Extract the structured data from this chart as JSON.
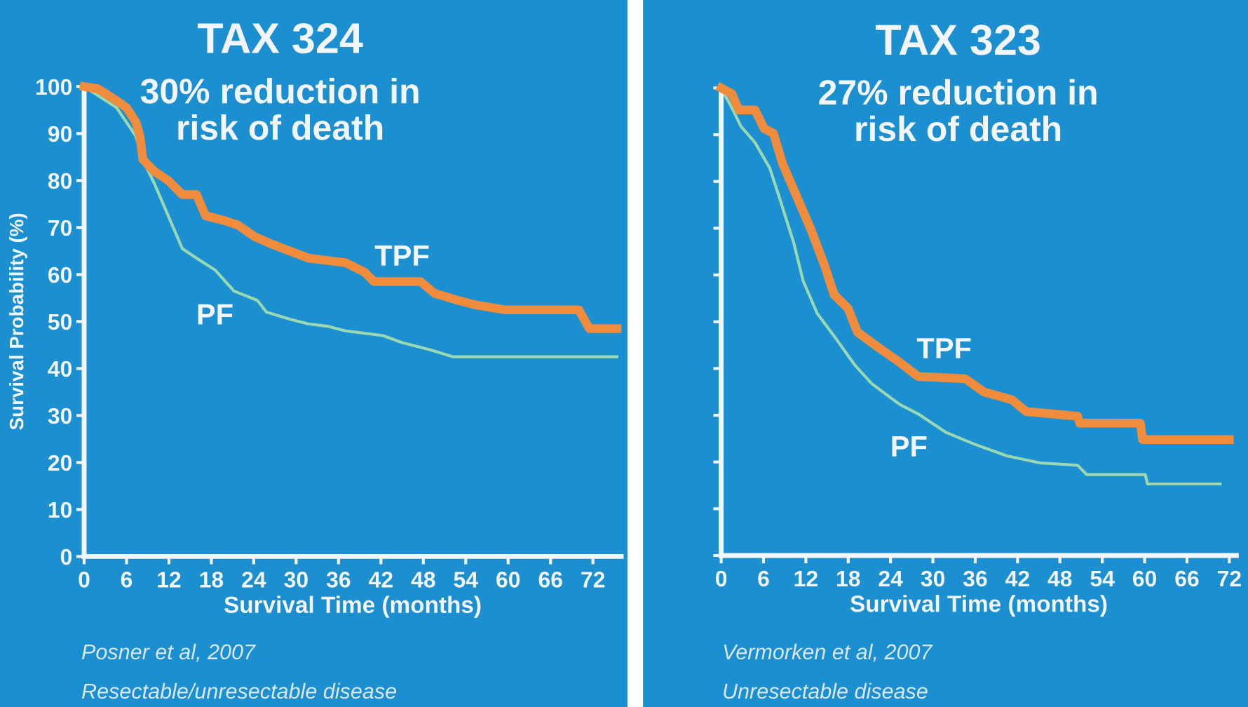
{
  "chart_data": [
    {
      "type": "line",
      "title": "TAX 324",
      "subtitle": "30% reduction in\nrisk of death",
      "xlabel": "Survival Time (months)",
      "ylabel": "Survival Probability (%)",
      "annotations": [
        "Posner et al, 2007",
        "Resectable/unresectable disease"
      ],
      "xlim": [
        0,
        76
      ],
      "ylim": [
        0,
        100
      ],
      "xticks": [
        0,
        6,
        12,
        18,
        24,
        30,
        36,
        42,
        48,
        54,
        60,
        66,
        72
      ],
      "yticks": [
        0,
        10,
        20,
        30,
        40,
        50,
        60,
        70,
        80,
        90,
        100
      ],
      "grid": false,
      "series": [
        {
          "name": "TPF",
          "color": "#f08c3c",
          "x": [
            0,
            2,
            4.6,
            6,
            7.3,
            7.9,
            8.3,
            9.9,
            11.9,
            13.9,
            15.9,
            17.2,
            19.8,
            21.8,
            24.2,
            26.5,
            29.1,
            31.7,
            37,
            39.7,
            41,
            47.6,
            49.6,
            52.9,
            55.5,
            59.5,
            70,
            71.5,
            75.4
          ],
          "values": [
            100,
            99.5,
            97,
            95.5,
            92.5,
            89.5,
            84.5,
            82,
            80,
            77,
            77,
            72.5,
            71.5,
            70.5,
            68,
            66.5,
            65,
            63.5,
            62.5,
            60.5,
            58.5,
            58.5,
            56,
            54.5,
            53.5,
            52.5,
            52.5,
            48.5,
            48.5
          ]
        },
        {
          "name": "PF",
          "color": "#9ad8b4",
          "x": [
            0,
            4.6,
            7.3,
            8.6,
            9.9,
            11.9,
            13.9,
            15.9,
            18.5,
            21.2,
            24.5,
            25.8,
            29.1,
            31.7,
            34.4,
            37,
            42.3,
            45,
            48.9,
            52.2,
            75.4
          ],
          "values": [
            100,
            95.5,
            89.5,
            83.5,
            79.5,
            72.5,
            65.5,
            63.5,
            61,
            56.5,
            54.5,
            52,
            50.5,
            49.5,
            49,
            48,
            47,
            45.5,
            44,
            42.5,
            42.5
          ]
        }
      ]
    },
    {
      "type": "line",
      "title": "TAX 323",
      "subtitle": "27% reduction in\nrisk of death",
      "xlabel": "Survival Time (months)",
      "annotations": [
        "Vermorken et al, 2007",
        "Unresectable disease"
      ],
      "xlim": [
        0,
        73
      ],
      "ylim": [
        0,
        100
      ],
      "xticks": [
        0,
        6,
        12,
        18,
        24,
        30,
        36,
        42,
        48,
        54,
        60,
        66,
        72
      ],
      "yticks": [
        {
          "value": 0,
          "label": null
        },
        {
          "value": 10,
          "label": null
        },
        {
          "value": 20,
          "label": null
        },
        {
          "value": 30,
          "label": null
        },
        {
          "value": 40,
          "label": null
        },
        {
          "value": 50,
          "label": null
        },
        {
          "value": 60,
          "label": null
        },
        {
          "value": 70,
          "label": null
        },
        {
          "value": 80,
          "label": null
        },
        {
          "value": 90,
          "label": null
        },
        {
          "value": 100,
          "label": null
        }
      ],
      "tick_labels": "x",
      "grid": false,
      "series": [
        {
          "name": "TPF",
          "color": "#f08c3c",
          "x": [
            0,
            1.5,
            2.5,
            4.8,
            6.1,
            7.4,
            8.7,
            10.7,
            12.7,
            14.7,
            16,
            18,
            19.3,
            22,
            25.3,
            27.9,
            34.6,
            37.2,
            41.2,
            43.2,
            50.5,
            50.8,
            59.4,
            59.7,
            72
          ],
          "values": [
            100,
            98.8,
            95.3,
            95.3,
            91.3,
            90.3,
            83.8,
            76.8,
            69.8,
            61.8,
            55.8,
            52.8,
            47.8,
            44.8,
            41.3,
            38.3,
            37.8,
            35,
            33.3,
            30.8,
            29.8,
            28.3,
            28.3,
            24.8,
            24.8
          ]
        },
        {
          "name": "PF",
          "color": "#9ad8b4",
          "x": [
            0,
            1.5,
            2.8,
            4.8,
            6.9,
            8.2,
            10.3,
            11.6,
            13.6,
            16.3,
            18.9,
            21.3,
            25.3,
            27.9,
            31.9,
            35.9,
            40.5,
            45.2,
            50.5,
            51.8,
            60.1,
            60.4,
            70.7
          ],
          "values": [
            100,
            95.8,
            91.8,
            88.3,
            82.8,
            76.8,
            66.8,
            58.8,
            51.8,
            46.3,
            40.8,
            36.8,
            32.3,
            30.3,
            26.3,
            23.8,
            21.3,
            19.8,
            19.3,
            17.3,
            17.3,
            15.3,
            15.3
          ]
        }
      ]
    }
  ]
}
